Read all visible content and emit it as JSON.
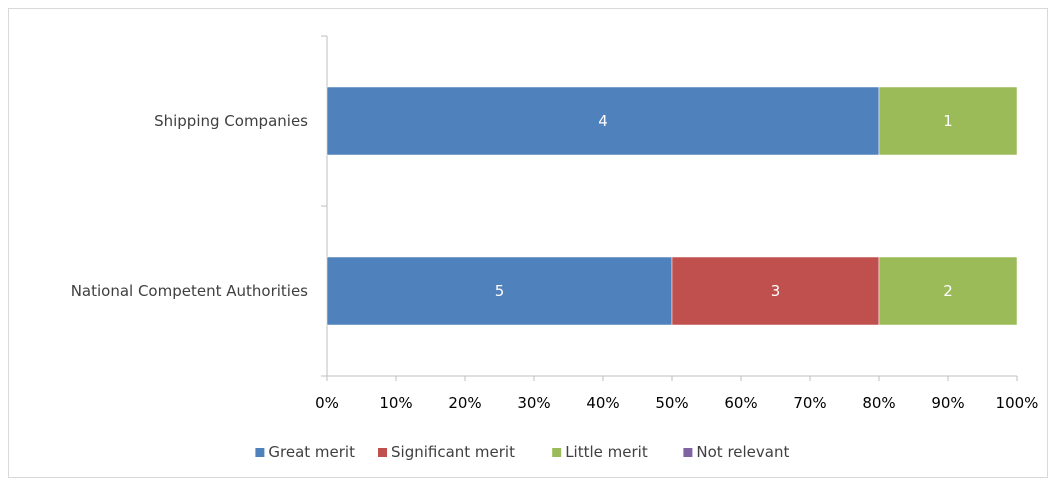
{
  "chart_data": {
    "type": "bar",
    "orientation": "horizontal",
    "stacked": "percent",
    "categories": [
      "Shipping Companies",
      "National Competent Authorities"
    ],
    "series": [
      {
        "name": "Great merit",
        "color": "#4f81bd",
        "values": [
          4,
          5
        ]
      },
      {
        "name": "Significant merit",
        "color": "#c0504d",
        "values": [
          0,
          3
        ]
      },
      {
        "name": "Little merit",
        "color": "#9bbb59",
        "values": [
          1,
          2
        ]
      },
      {
        "name": "Not relevant",
        "color": "#8064a2",
        "values": [
          0,
          0
        ]
      }
    ],
    "x_ticks": [
      "0%",
      "10%",
      "20%",
      "30%",
      "40%",
      "50%",
      "60%",
      "70%",
      "80%",
      "90%",
      "100%"
    ],
    "xlim": [
      0,
      100
    ],
    "grid": false,
    "legend": "bottom"
  }
}
